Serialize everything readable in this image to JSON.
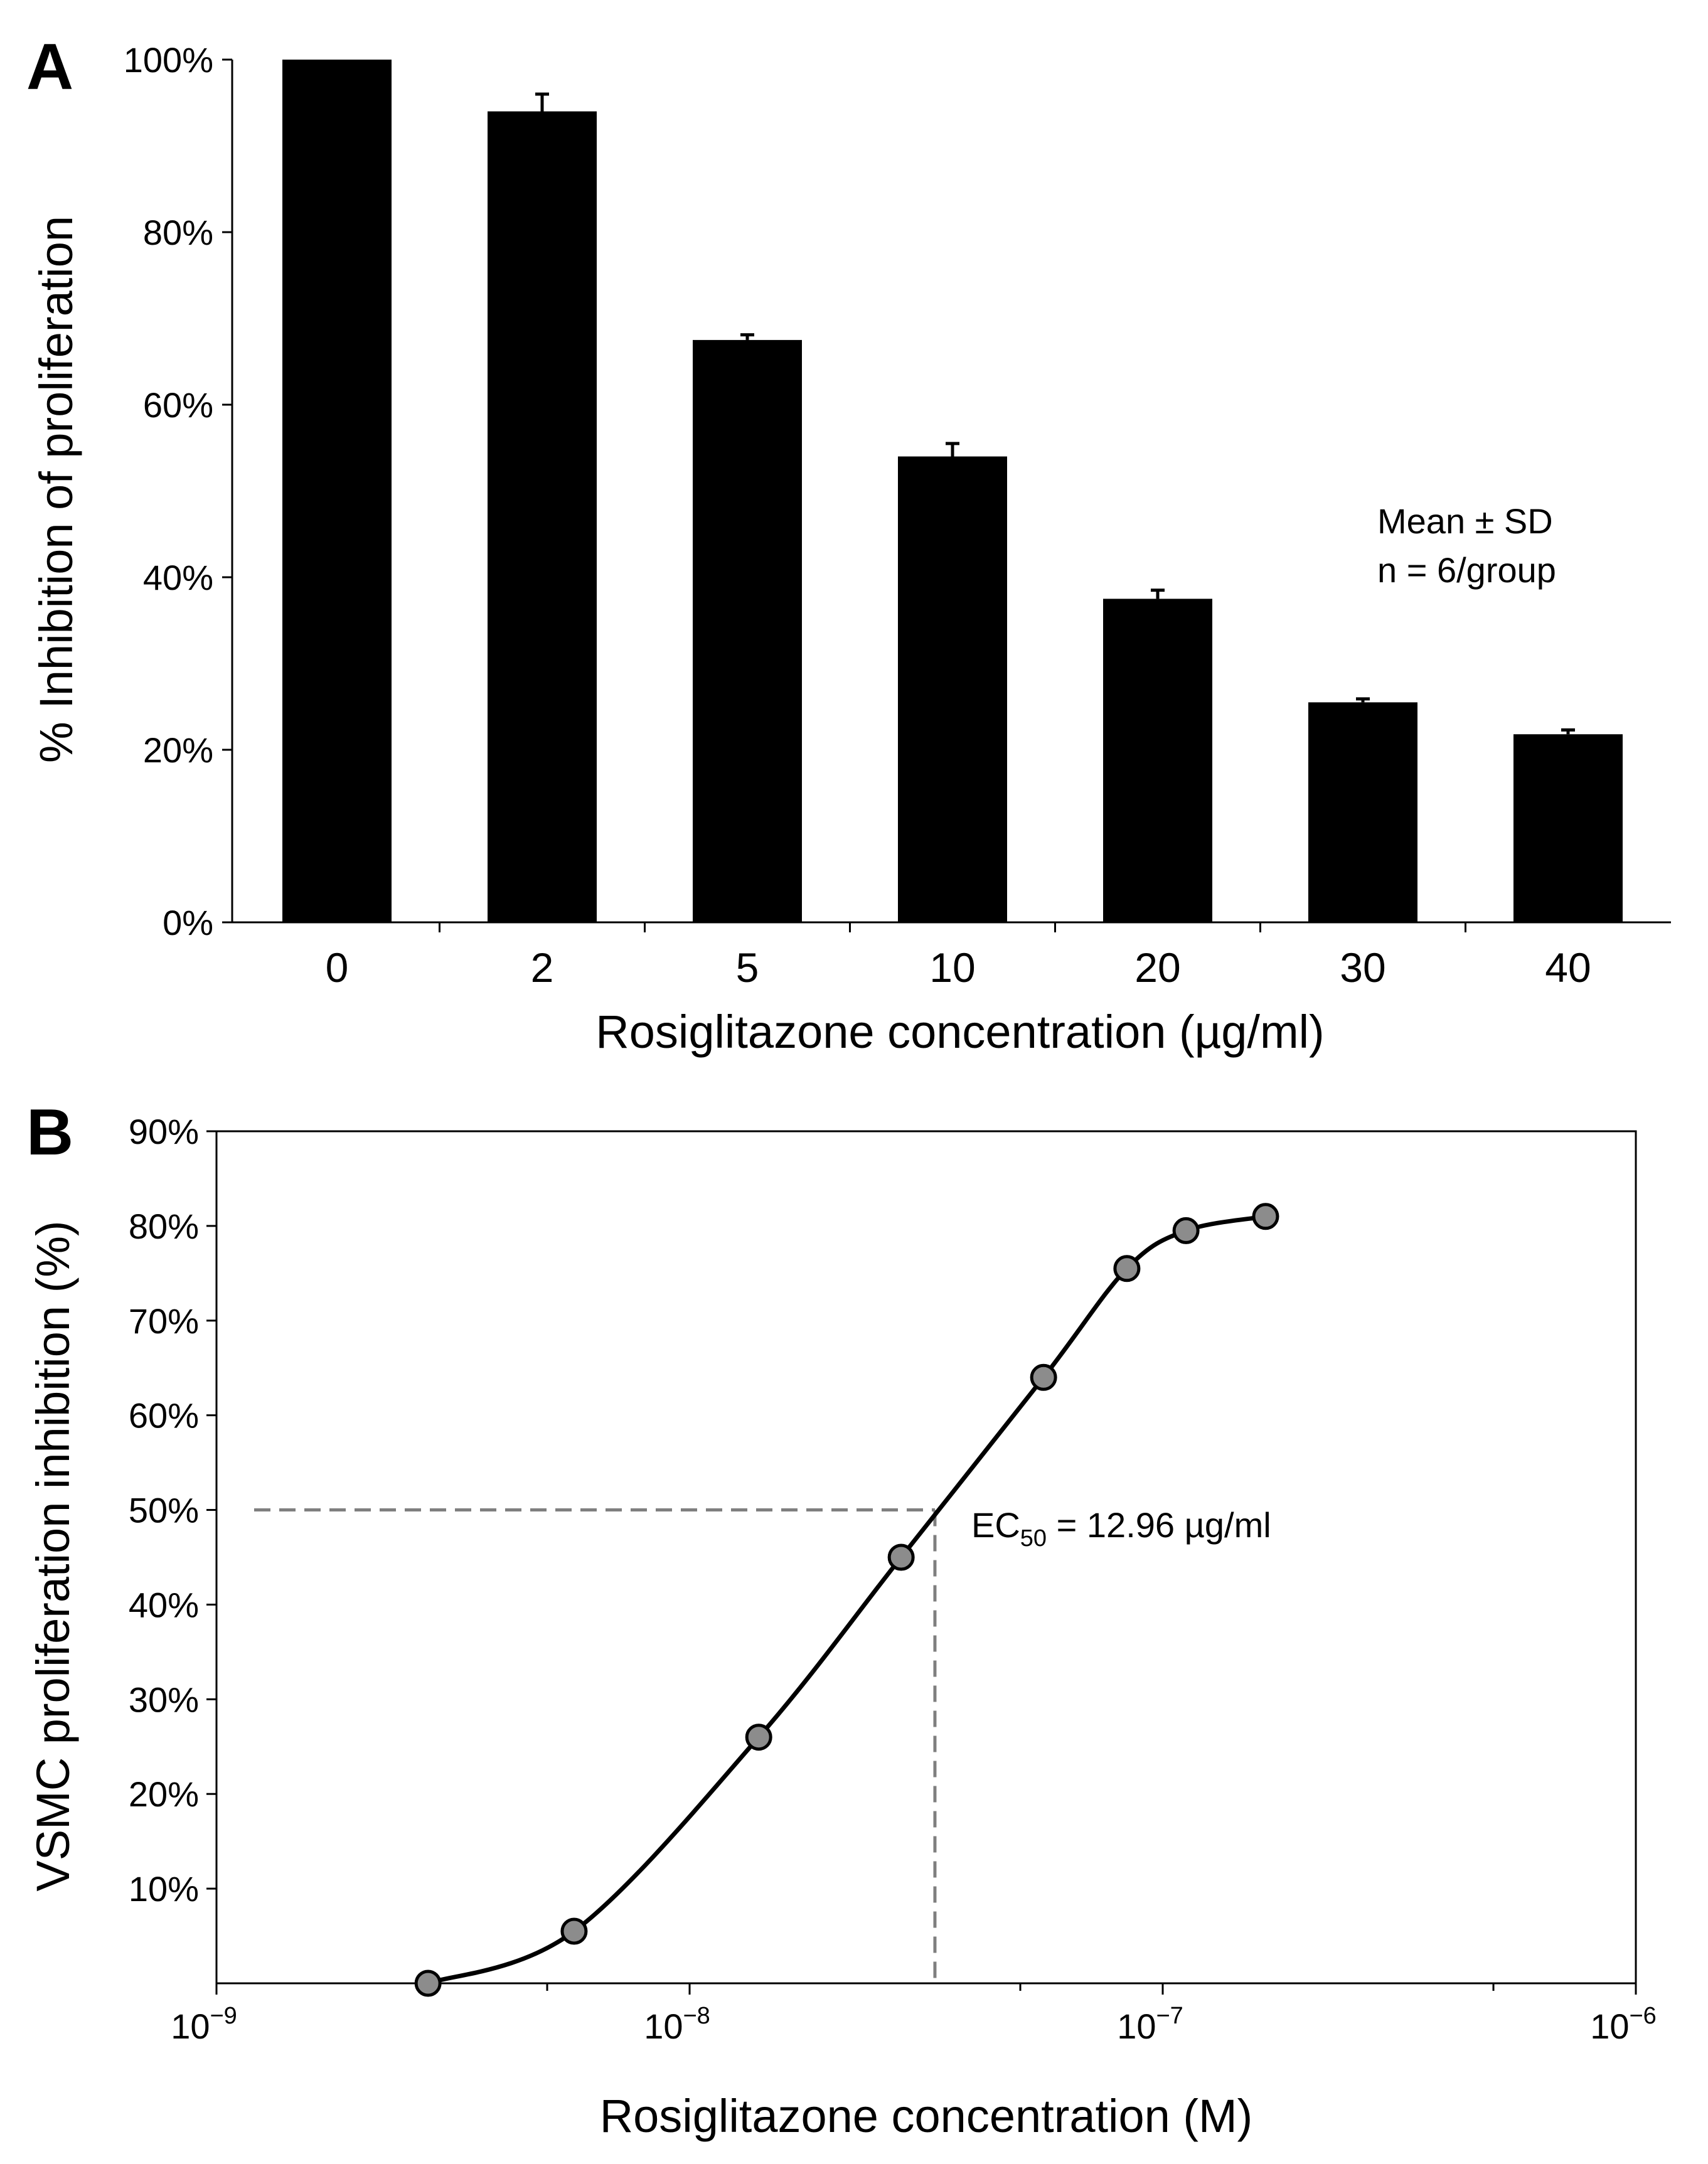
{
  "chart_data": [
    {
      "panel": "A",
      "type": "bar",
      "categories": [
        "0",
        "2",
        "5",
        "10",
        "20",
        "30",
        "40"
      ],
      "values": [
        100,
        94,
        67.5,
        54,
        37.5,
        25.5,
        21.8
      ],
      "errors": [
        0,
        2,
        0.6,
        1.5,
        1,
        0.4,
        0.5
      ],
      "color": "#000000",
      "xlabel": "Rosiglitazone concentration (µg/ml)",
      "ylabel": "% Inhibition of proliferation",
      "ylim": [
        0,
        100
      ],
      "yticks": [
        "0%",
        "20%",
        "40%",
        "60%",
        "80%",
        "100%"
      ],
      "grid": false,
      "annotation": [
        "Mean ± SD",
        "n = 6/group"
      ]
    },
    {
      "panel": "B",
      "type": "line",
      "x": [
        2.8e-09,
        5.7e-09,
        1.4e-08,
        2.8e-08,
        5.6e-08,
        8.4e-08,
        1.12e-07,
        1.65e-07
      ],
      "y": [
        0,
        5.5,
        26,
        45,
        64,
        75.5,
        79.5,
        81
      ],
      "marker_color": "#8c8c8c",
      "xscale": "log",
      "xlim": [
        1e-09,
        1e-06
      ],
      "xticks": [
        {
          "base": "10",
          "exp": "−9"
        },
        {
          "base": "10",
          "exp": "−8"
        },
        {
          "base": "10",
          "exp": "−7"
        },
        {
          "base": "10",
          "exp": "−6"
        }
      ],
      "ylim": [
        0,
        90
      ],
      "yticks": [
        "10%",
        "20%",
        "30%",
        "40%",
        "50%",
        "60%",
        "70%",
        "80%",
        "90%"
      ],
      "xlabel": "Rosiglitazone concentration (M)",
      "ylabel": "VSMC proliferation inhibition (%)",
      "grid": false,
      "ec50_x": 3.3e-08,
      "ec50_y": 50,
      "ec50_label": {
        "prefix": "EC",
        "sub": "50",
        "suffix": " = 12.96 µg/ml"
      }
    }
  ]
}
